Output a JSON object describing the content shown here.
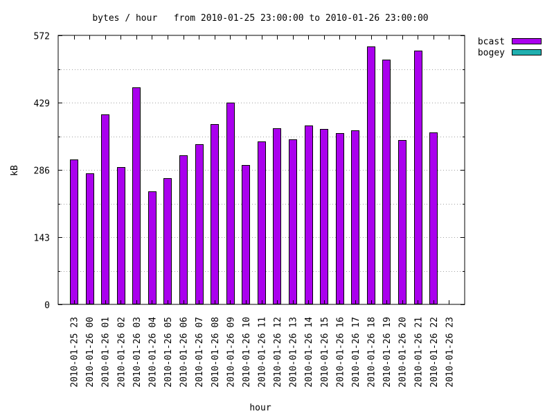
{
  "chart_data": {
    "type": "bar",
    "title": "bytes / hour   from 2010-01-25 23:00:00 to 2010-01-26 23:00:00",
    "xlabel": "hour",
    "ylabel": "kB",
    "ylim": [
      0,
      572
    ],
    "yticks": [
      0,
      143,
      286,
      429,
      572
    ],
    "grid": true,
    "legend_position": "top-right",
    "categories": [
      "2010-01-25 23",
      "2010-01-26 00",
      "2010-01-26 01",
      "2010-01-26 02",
      "2010-01-26 03",
      "2010-01-26 04",
      "2010-01-26 05",
      "2010-01-26 06",
      "2010-01-26 07",
      "2010-01-26 08",
      "2010-01-26 09",
      "2010-01-26 10",
      "2010-01-26 11",
      "2010-01-26 12",
      "2010-01-26 13",
      "2010-01-26 14",
      "2010-01-26 15",
      "2010-01-26 16",
      "2010-01-26 17",
      "2010-01-26 18",
      "2010-01-26 19",
      "2010-01-26 20",
      "2010-01-26 21",
      "2010-01-26 22",
      "2010-01-26 23"
    ],
    "series": [
      {
        "name": "bcast",
        "color": "#aa00ee",
        "values": [
          308,
          279,
          404,
          292,
          462,
          241,
          268,
          317,
          340,
          383,
          429,
          296,
          347,
          375,
          351,
          380,
          373,
          364,
          370,
          548,
          520,
          350,
          539,
          366,
          0
        ]
      },
      {
        "name": "bogey",
        "color": "#20b0b0",
        "values": [
          0,
          0,
          0,
          0,
          0,
          0,
          0,
          0,
          0,
          0,
          0,
          0,
          0,
          0,
          0,
          0,
          0,
          0,
          0,
          0,
          0,
          0,
          0,
          0,
          0
        ]
      }
    ]
  }
}
